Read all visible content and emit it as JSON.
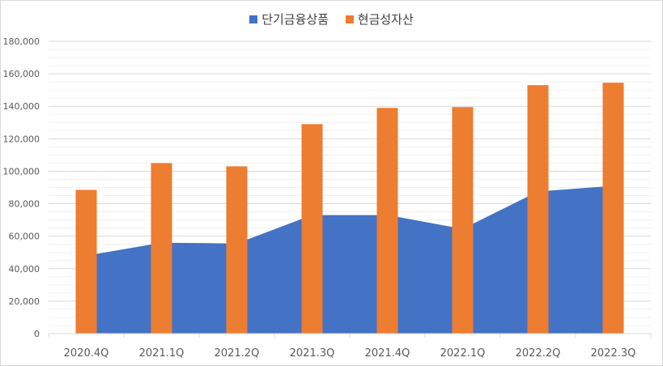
{
  "chart_data": {
    "type": "bar",
    "categories": [
      "2020.4Q",
      "2021.1Q",
      "2021.2Q",
      "2021.3Q",
      "2021.4Q",
      "2022.1Q",
      "2022.2Q",
      "2022.3Q"
    ],
    "series": [
      {
        "name": "단기금융상품",
        "type": "area",
        "color": "#4472c4",
        "values": [
          48000,
          56000,
          55500,
          73000,
          73000,
          64500,
          87500,
          91000
        ]
      },
      {
        "name": "현금성자산",
        "type": "bar",
        "color": "#ed7d31",
        "values": [
          88500,
          105000,
          103000,
          129000,
          139000,
          139500,
          153000,
          154500
        ]
      }
    ],
    "ylim": [
      0,
      180000
    ],
    "y_ticks": [
      "0",
      "20,000",
      "40,000",
      "60,000",
      "80,000",
      "100,000",
      "120,000",
      "140,000",
      "160,000",
      "180,000"
    ],
    "grid": true,
    "legend_position": "top"
  }
}
